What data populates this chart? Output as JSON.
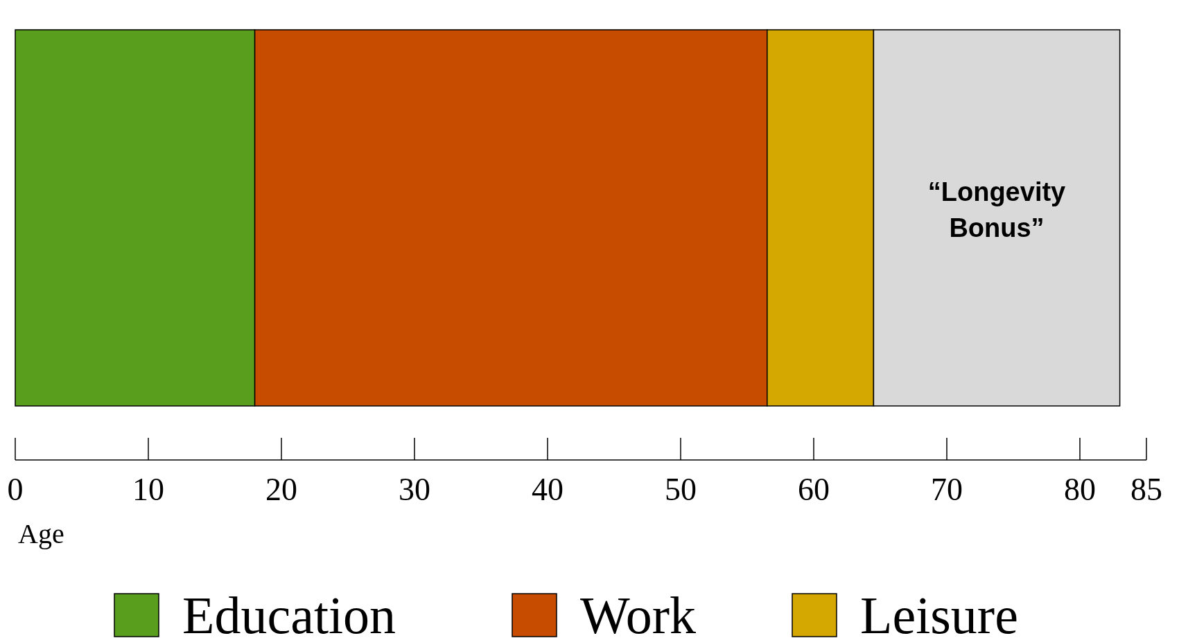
{
  "chart_data": {
    "type": "bar",
    "orientation": "horizontal",
    "stacked": true,
    "categories": [
      null
    ],
    "series": [
      {
        "name": "Education",
        "color": "#5a9e1e",
        "values": [
          18
        ]
      },
      {
        "name": "Work",
        "color": "#c84c00",
        "values": [
          38.5
        ]
      },
      {
        "name": "Leisure",
        "color": "#d4a800",
        "values": [
          8
        ]
      },
      {
        "color": "#d9d9d9",
        "values": [
          18.5
        ]
      }
    ],
    "xlim": [
      0,
      85
    ],
    "xticks": [
      0,
      10,
      20,
      30,
      40,
      50,
      60,
      70,
      80,
      85
    ],
    "xlabel": "Age",
    "legend": "bottom",
    "annotations": [
      "“Longevity Bonus”"
    ]
  }
}
